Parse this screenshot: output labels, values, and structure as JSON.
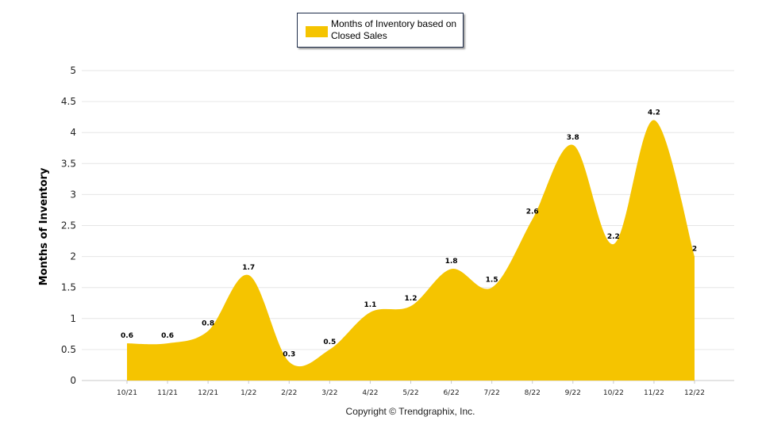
{
  "chart_data": {
    "type": "area",
    "categories": [
      "10/21",
      "11/21",
      "12/21",
      "1/22",
      "2/22",
      "3/22",
      "4/22",
      "5/22",
      "6/22",
      "7/22",
      "8/22",
      "9/22",
      "10/22",
      "11/22",
      "12/22"
    ],
    "series": [
      {
        "name": "Months of Inventory based on Closed Sales",
        "values": [
          0.6,
          0.6,
          0.8,
          1.7,
          0.3,
          0.5,
          1.1,
          1.2,
          1.8,
          1.5,
          2.6,
          3.8,
          2.2,
          4.2,
          2
        ],
        "data_labels": [
          "0.6",
          "0.6",
          "0.8",
          "1.7",
          "0.3",
          "0.5",
          "1.1",
          "1.2",
          "1.8",
          "1.5",
          "2.6",
          "3.8",
          "2.2",
          "4.2",
          "2"
        ]
      }
    ],
    "ylabel": "Months of Inventory",
    "xlabel": "",
    "ylim": [
      0,
      5
    ],
    "yticks": [
      "0",
      "0.5",
      "1",
      "1.5",
      "2",
      "2.5",
      "3",
      "3.5",
      "4",
      "4.5",
      "5"
    ],
    "grid": true,
    "legend_placement": "top-center",
    "colors": {
      "fill": "#f5c400",
      "grid": "#e6e6e6",
      "axis": "#c8c8c8",
      "text": "#000000"
    }
  },
  "footer": {
    "copyright": "Copyright © Trendgraphix, Inc."
  }
}
